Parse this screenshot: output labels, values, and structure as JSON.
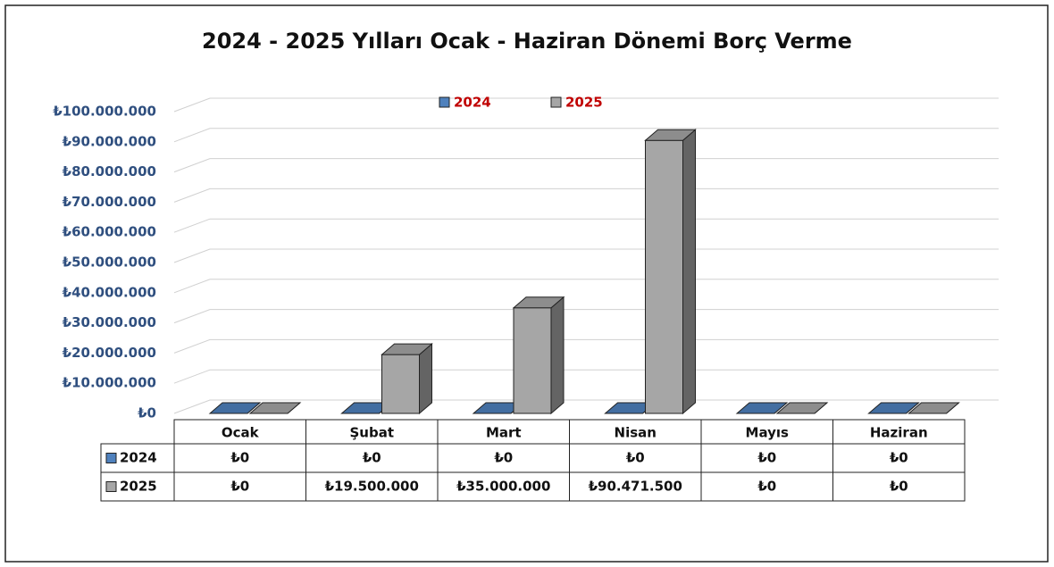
{
  "chart_data": {
    "type": "bar3d",
    "title": "2024 - 2025 Yılları Ocak - Haziran Dönemi Borç Verme",
    "categories": [
      "Ocak",
      "Şubat",
      "Mart",
      "Nisan",
      "Mayıs",
      "Haziran"
    ],
    "series": [
      {
        "name": "2024",
        "color": "#4f81bd",
        "values": [
          0,
          0,
          0,
          0,
          0,
          0
        ],
        "value_labels": [
          "₺0",
          "₺0",
          "₺0",
          "₺0",
          "₺0",
          "₺0"
        ]
      },
      {
        "name": "2025",
        "color": "#a6a6a6",
        "values": [
          0,
          19500000,
          35000000,
          90471500,
          0,
          0
        ],
        "value_labels": [
          "₺0",
          "₺19.500.000",
          "₺35.000.000",
          "₺90.471.500",
          "₺0",
          "₺0"
        ]
      }
    ],
    "ylim": [
      0,
      100000000
    ],
    "yticks": [
      {
        "value": 0,
        "label": "₺0"
      },
      {
        "value": 10000000,
        "label": "₺10.000.000"
      },
      {
        "value": 20000000,
        "label": "₺20.000.000"
      },
      {
        "value": 30000000,
        "label": "₺30.000.000"
      },
      {
        "value": 40000000,
        "label": "₺40.000.000"
      },
      {
        "value": 50000000,
        "label": "₺50.000.000"
      },
      {
        "value": 60000000,
        "label": "₺60.000.000"
      },
      {
        "value": 70000000,
        "label": "₺70.000.000"
      },
      {
        "value": 80000000,
        "label": "₺80.000.000"
      },
      {
        "value": 90000000,
        "label": "₺90.000.000"
      },
      {
        "value": 100000000,
        "label": "₺100.000.000"
      }
    ],
    "grid": true,
    "legend": "top"
  }
}
